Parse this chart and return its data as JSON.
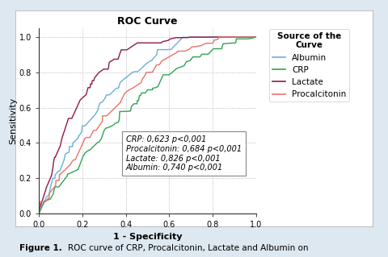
{
  "title": "ROC Curve",
  "xlabel": "1 - Specificity",
  "ylabel": "Sensitivity",
  "legend_title": "Source of the\nCurve",
  "annotation_text_lines": [
    "CRP: 0,623 p<0,001",
    "Procalcitonin: 0,684 p<0,001",
    "Lactate: 0,826 p<0,001",
    "Albumin: 0,740 p<0,001"
  ],
  "curves": {
    "Albumin": {
      "color": "#6baed6",
      "auc": 0.74,
      "seed": 42
    },
    "CRP": {
      "color": "#31a354",
      "auc": 0.623,
      "seed": 7
    },
    "Lactate": {
      "color": "#8b1a4a",
      "auc": 0.826,
      "seed": 13
    },
    "Procalcitonin": {
      "color": "#e8736a",
      "auc": 0.684,
      "seed": 99
    }
  },
  "outer_bg": "#dde8f0",
  "inner_bg": "#ffffff",
  "plot_bg": "#ffffff",
  "title_fontsize": 9,
  "label_fontsize": 8,
  "tick_fontsize": 7,
  "legend_fontsize": 7.5,
  "annot_fontsize": 7,
  "caption_fontsize": 7.5,
  "xticks": [
    0.0,
    0.2,
    0.4,
    0.6,
    0.8,
    1.0
  ],
  "yticks": [
    0.0,
    0.2,
    0.4,
    0.6,
    0.8,
    1.0
  ],
  "xticklabels": [
    "0.0",
    "0.2",
    "0.4",
    "0.6",
    "0.8",
    "1.0"
  ],
  "yticklabels": [
    "0.0",
    "0.2",
    "0.4",
    "0.6",
    "0.8",
    "1.0"
  ]
}
